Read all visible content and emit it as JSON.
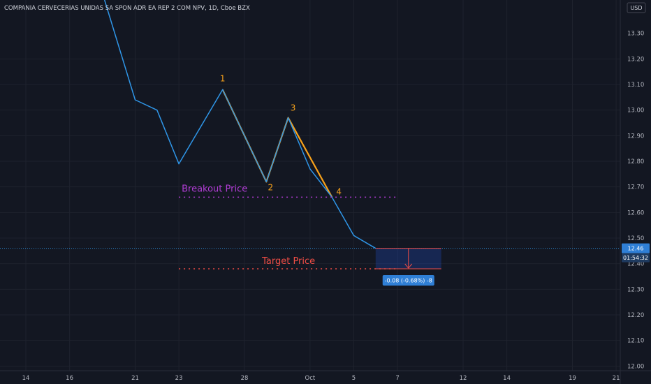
{
  "title": "COMPANIA CERVECERIAS UNIDAS SA SPON ADR EA REP 2 COM NPV, 1D, Cboe BZX",
  "currency": "USD",
  "colors": {
    "background": "#131722",
    "price_line": "#2f96e8",
    "pattern_line": "#f7a21b",
    "breakout": "#b23dd6",
    "target": "#ef4d45",
    "badge": "#2f7fd6"
  },
  "chart_data": {
    "type": "line",
    "ylim": [
      11.93,
      13.43
    ],
    "y_ticks": [
      {
        "value": 13.2,
        "label": "13.20"
      },
      {
        "value": 13.1,
        "label": "13.10"
      },
      {
        "value": 13.0,
        "label": "13.00"
      },
      {
        "value": 12.9,
        "label": "12.90"
      },
      {
        "value": 12.8,
        "label": "12.80"
      },
      {
        "value": 12.7,
        "label": "12.70"
      },
      {
        "value": 12.6,
        "label": "12.60"
      },
      {
        "value": 12.5,
        "label": "12.50"
      },
      {
        "value": 12.4,
        "label": "12.40"
      },
      {
        "value": 12.3,
        "label": "12.30"
      },
      {
        "value": 12.2,
        "label": "12.20"
      },
      {
        "value": 12.1,
        "label": "12.10"
      },
      {
        "value": 12.0,
        "label": "12.00"
      }
    ],
    "x_ticks": [
      {
        "index": 0,
        "label": "14"
      },
      {
        "index": 2,
        "label": "16"
      },
      {
        "index": 5,
        "label": "21"
      },
      {
        "index": 7,
        "label": "23"
      },
      {
        "index": 10,
        "label": "28"
      },
      {
        "index": 13,
        "label": "Oct"
      },
      {
        "index": 15,
        "label": "5"
      },
      {
        "index": 17,
        "label": "7"
      },
      {
        "index": 20,
        "label": "12"
      },
      {
        "index": 22,
        "label": "14"
      },
      {
        "index": 25,
        "label": "19"
      },
      {
        "index": 27,
        "label": "21"
      }
    ],
    "series": [
      {
        "points": [
          {
            "x": 3.6,
            "y": 13.43
          },
          {
            "x": 5,
            "y": 13.04
          },
          {
            "x": 6,
            "y": 13.0
          },
          {
            "x": 7,
            "y": 12.79
          },
          {
            "x": 9,
            "y": 13.08
          },
          {
            "x": 11,
            "y": 12.72
          },
          {
            "x": 12,
            "y": 12.97
          },
          {
            "x": 13,
            "y": 12.77
          },
          {
            "x": 14,
            "y": 12.66
          },
          {
            "x": 15,
            "y": 12.51
          },
          {
            "x": 16,
            "y": 12.46
          }
        ]
      }
    ],
    "pattern": {
      "points": [
        {
          "label": "1",
          "x": 9,
          "y": 13.08
        },
        {
          "label": "2",
          "x": 11,
          "y": 12.72
        },
        {
          "label": "3",
          "x": 12,
          "y": 12.97
        },
        {
          "label": "4",
          "x": 14,
          "y": 12.66
        }
      ]
    },
    "breakout": {
      "label": "Breakout Price",
      "value": 12.66,
      "x_start": 7,
      "x_end": 17
    },
    "target": {
      "label": "Target Price",
      "value": 12.38,
      "x_start": 7,
      "x_end": 17
    },
    "projection": {
      "x_start": 16,
      "x_end": 19,
      "from": 12.46,
      "to": 12.38,
      "label": "-0.08 (-0.68%) -8"
    },
    "last_price": {
      "value": 12.46,
      "label": "12.46",
      "countdown": "01:54:32"
    }
  }
}
